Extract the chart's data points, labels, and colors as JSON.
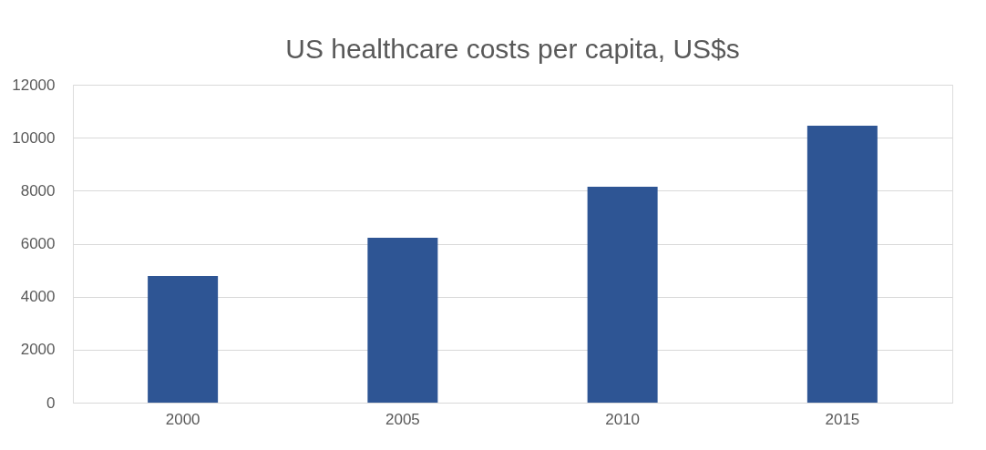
{
  "chart_data": {
    "type": "bar",
    "title": "US healthcare costs per capita, US$s",
    "categories": [
      "2000",
      "2005",
      "2010",
      "2015"
    ],
    "values": [
      4780,
      6220,
      8150,
      10450
    ],
    "color": "#2e5594",
    "ylim": [
      0,
      12000
    ],
    "yticks": [
      0,
      2000,
      4000,
      6000,
      8000,
      10000,
      12000
    ],
    "grid": "y",
    "legend": false
  }
}
